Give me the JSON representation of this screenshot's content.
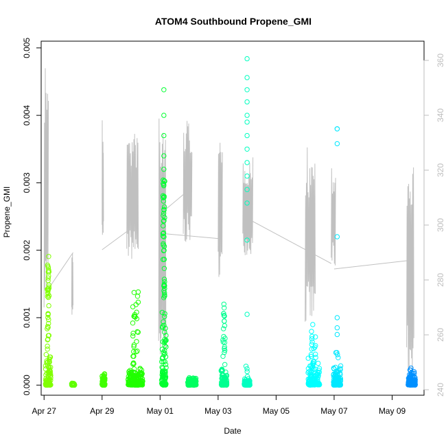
{
  "chart_data": {
    "type": "scatter",
    "title": "ATOM4 Southbound Propene_GMI",
    "xlabel": "Date",
    "ylabel": "Propene_GMI",
    "xlim": [
      -0.1,
      13.1
    ],
    "ylim": [
      -0.00015,
      0.0051
    ],
    "y2lim": [
      238,
      367
    ],
    "x_ticks": [
      {
        "label": "Apr 27",
        "value": 0
      },
      {
        "label": "Apr 29",
        "value": 2
      },
      {
        "label": "May 01",
        "value": 4
      },
      {
        "label": "May 03",
        "value": 6
      },
      {
        "label": "May 05",
        "value": 8
      },
      {
        "label": "May 07",
        "value": 10
      },
      {
        "label": "May 09",
        "value": 12
      }
    ],
    "y_ticks": [
      {
        "label": "0.000",
        "value": 0
      },
      {
        "label": "0.001",
        "value": 0.001
      },
      {
        "label": "0.002",
        "value": 0.002
      },
      {
        "label": "0.003",
        "value": 0.003
      },
      {
        "label": "0.004",
        "value": 0.004
      },
      {
        "label": "0.005",
        "value": 0.005
      }
    ],
    "y2_ticks": [
      {
        "label": "240",
        "value": 240
      },
      {
        "label": "260",
        "value": 260
      },
      {
        "label": "280",
        "value": 280
      },
      {
        "label": "300",
        "value": 300
      },
      {
        "label": "320",
        "value": 320
      },
      {
        "label": "340",
        "value": 340
      },
      {
        "label": "360",
        "value": 360
      }
    ],
    "clusters": [
      {
        "x": 0.05,
        "width": 0.18,
        "dense_max": 0.0005,
        "sparse_max": 0.00195,
        "outliers": [
          0.00155,
          0.0014,
          0.00135
        ],
        "color": "#80ff00"
      },
      {
        "x": 0.95,
        "width": 0.1,
        "dense_max": 3e-05,
        "sparse_max": 3e-05,
        "outliers": [],
        "color": "#60ff00"
      },
      {
        "x": 2.0,
        "width": 0.1,
        "dense_max": 0.0002,
        "sparse_max": 0.00022,
        "outliers": [],
        "color": "#40ff00"
      },
      {
        "x": 2.9,
        "width": 0.5,
        "dense_max": 0.0003,
        "sparse_max": 0.0014,
        "outliers": [],
        "color": "#20ff00"
      },
      {
        "x": 4.05,
        "width": 0.16,
        "dense_max": 0.00128,
        "sparse_max": 0.00305,
        "outliers": [
          0.00438,
          0.004,
          0.0037,
          0.0034,
          0.0032
        ],
        "color": "#00ff30"
      },
      {
        "x": 4.95,
        "width": 0.3,
        "dense_max": 0.00015,
        "sparse_max": 0.00015,
        "outliers": [],
        "color": "#00ff60"
      },
      {
        "x": 6.1,
        "width": 0.2,
        "dense_max": 0.0003,
        "sparse_max": 0.00115,
        "outliers": [
          0.0012
        ],
        "color": "#00ff90"
      },
      {
        "x": 6.9,
        "width": 0.2,
        "dense_max": 0.00012,
        "sparse_max": 0.0003,
        "outliers": [
          0.00484,
          0.00456,
          0.00438,
          0.0042,
          0.004,
          0.0039,
          0.0037,
          0.0035,
          0.0033,
          0.0031,
          0.0029,
          0.0027,
          0.00215,
          0.00105
        ],
        "color": "#00ffc0"
      },
      {
        "x": 9.1,
        "width": 0.4,
        "dense_max": 0.0005,
        "sparse_max": 0.00095,
        "outliers": [],
        "color": "#00ffff"
      },
      {
        "x": 9.98,
        "width": 0.25,
        "dense_max": 0.00035,
        "sparse_max": 0.0005,
        "outliers": [
          0.0038,
          0.0038,
          0.00358,
          0.0022,
          0.001,
          0.00085,
          0.00075
        ],
        "color": "#00e8ff"
      },
      {
        "x": 12.55,
        "width": 0.25,
        "dense_max": 0.00025,
        "sparse_max": 0.00028,
        "outliers": [],
        "color": "#0090ff"
      }
    ],
    "altitude_series": {
      "name": "altitude",
      "color": "#c0c0c0",
      "segments": [
        {
          "x0": 0.0,
          "x1": 0.15,
          "min": 270,
          "max": 363
        },
        {
          "x0": 0.95,
          "x1": 1.0,
          "min": 265,
          "max": 290
        },
        {
          "x0": 2.0,
          "x1": 2.05,
          "min": 290,
          "max": 340
        },
        {
          "x0": 2.85,
          "x1": 3.25,
          "min": 287,
          "max": 334
        },
        {
          "x0": 3.95,
          "x1": 4.2,
          "min": 247,
          "max": 349
        },
        {
          "x0": 4.8,
          "x1": 5.1,
          "min": 293,
          "max": 339
        },
        {
          "x0": 6.0,
          "x1": 6.15,
          "min": 281,
          "max": 330
        },
        {
          "x0": 6.85,
          "x1": 7.2,
          "min": 289,
          "max": 325
        },
        {
          "x0": 9.0,
          "x1": 9.35,
          "min": 263,
          "max": 329
        },
        {
          "x0": 9.9,
          "x1": 10.05,
          "min": 284,
          "max": 323
        },
        {
          "x0": 12.5,
          "x1": 12.75,
          "min": 244,
          "max": 326
        }
      ],
      "connectors": [
        {
          "x": 0.1,
          "y": 276
        },
        {
          "x": 1.0,
          "y": 290
        },
        {
          "x": 2.0,
          "y": 291
        },
        {
          "x": 2.9,
          "y": 298
        },
        {
          "x": 4.0,
          "y": 304
        },
        {
          "x": 4.9,
          "y": 312
        },
        {
          "x": 4.0,
          "y": 297
        },
        {
          "x": 6.1,
          "y": 295
        },
        {
          "x": 6.9,
          "y": 303
        },
        {
          "x": 9.9,
          "y": 286
        },
        {
          "x": 10.0,
          "y": 284
        },
        {
          "x": 12.5,
          "y": 287
        }
      ]
    }
  }
}
